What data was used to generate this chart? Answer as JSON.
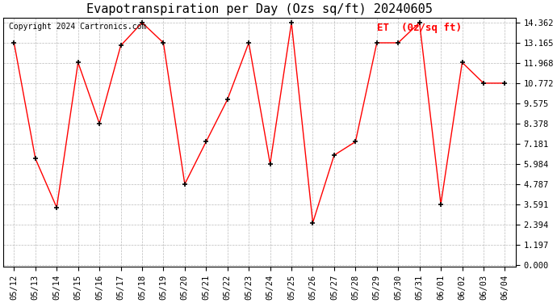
{
  "title": "Evapotranspiration per Day (Ozs sq/ft) 20240605",
  "copyright": "Copyright 2024 Cartronics.com",
  "legend_label": "ET  (0z/sq ft)",
  "dates": [
    "05/12",
    "05/13",
    "05/14",
    "05/15",
    "05/16",
    "05/17",
    "05/18",
    "05/19",
    "05/20",
    "05/21",
    "05/22",
    "05/23",
    "05/24",
    "05/25",
    "05/26",
    "05/27",
    "05/28",
    "05/29",
    "05/30",
    "05/31",
    "06/01",
    "06/02",
    "06/03",
    "06/04"
  ],
  "values": [
    13.165,
    6.3,
    3.4,
    12.0,
    8.378,
    13.0,
    14.362,
    13.165,
    4.787,
    7.3,
    9.8,
    13.165,
    5.984,
    14.362,
    2.5,
    6.5,
    7.3,
    13.165,
    13.165,
    14.362,
    3.591,
    12.0,
    10.772,
    10.772
  ],
  "yticks": [
    0.0,
    1.197,
    2.394,
    3.591,
    4.787,
    5.984,
    7.181,
    8.378,
    9.575,
    10.772,
    11.968,
    13.165,
    14.362
  ],
  "line_color": "red",
  "marker_color": "black",
  "bg_color": "white",
  "grid_color": "#aaaaaa",
  "title_fontsize": 11,
  "copyright_fontsize": 7,
  "legend_fontsize": 9,
  "tick_fontsize": 7.5
}
